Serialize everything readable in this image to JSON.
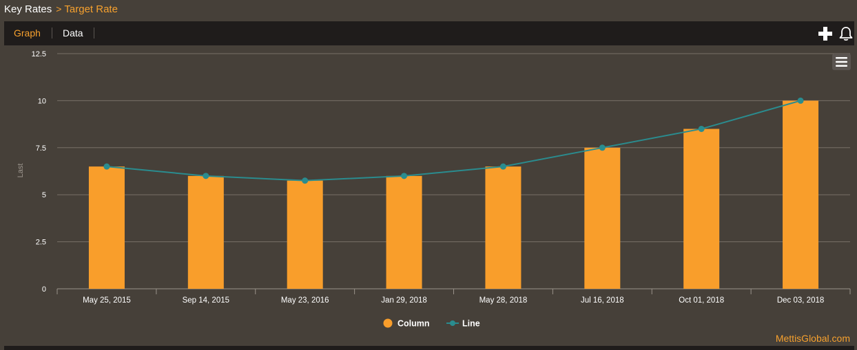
{
  "breadcrumb": {
    "root": "Key Rates",
    "separator": ">",
    "current": "Target Rate"
  },
  "tabs": {
    "graph": "Graph",
    "data": "Data"
  },
  "toolbar": {
    "add_icon": "plus-icon",
    "alert_icon": "bell-icon"
  },
  "chart_menu_icon": "hamburger-menu-icon",
  "footer": {
    "brand": "MettisGlobal.com"
  },
  "colors": {
    "background": "#464039",
    "toolbar": "#1f1c1b",
    "accent": "#f7a12e",
    "column": "#f99e2b",
    "line": "#2a8c8f",
    "grid": "#787068",
    "text": "#ffffff"
  },
  "chart_data": {
    "type": "bar",
    "categories": [
      "May 25, 2015",
      "Sep 14, 2015",
      "May 23, 2016",
      "Jan 29, 2018",
      "May 28, 2018",
      "Jul 16, 2018",
      "Oct 01, 2018",
      "Dec 03, 2018"
    ],
    "series": [
      {
        "name": "Column",
        "type": "bar",
        "values": [
          6.5,
          6.0,
          5.75,
          6.0,
          6.5,
          7.5,
          8.5,
          10.0
        ]
      },
      {
        "name": "Line",
        "type": "line",
        "values": [
          6.5,
          6.0,
          5.75,
          6.0,
          6.5,
          7.5,
          8.5,
          10.0
        ]
      }
    ],
    "title": "",
    "xlabel": "",
    "ylabel": "Last",
    "ylim": [
      0,
      12.5
    ],
    "yticks": [
      0,
      2.5,
      5,
      7.5,
      10,
      12.5
    ],
    "ytick_labels": [
      "0",
      "2.5",
      "5",
      "7.5",
      "10",
      "12.5"
    ],
    "grid": true,
    "legend_position": "bottom-center"
  }
}
